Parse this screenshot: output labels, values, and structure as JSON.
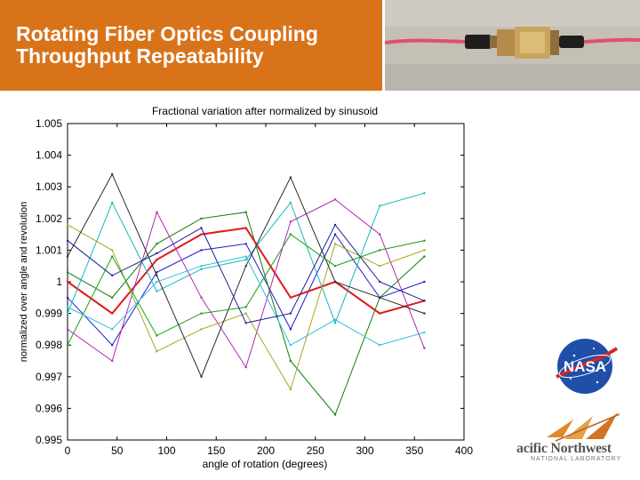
{
  "slide": {
    "title": "Rotating Fiber Optics Coupling\nThroughput Repeatability",
    "header_color": "#d9731a"
  },
  "photo": {
    "description_icon": "fiber-optic-rotary-joint-photo"
  },
  "logos": {
    "nasa": {
      "text": "NASA"
    },
    "pnnl": {
      "name": "acific Northwest",
      "sub": "NATIONAL LABORATORY"
    }
  },
  "chart_data": {
    "type": "line",
    "title": "Fractional variation after normalized by sinusoid",
    "xlabel": "angle of rotation (degrees)",
    "ylabel": "normalized over angle and revolution",
    "xlim": [
      0,
      400
    ],
    "ylim": [
      0.995,
      1.005
    ],
    "xticks": [
      "0",
      "50",
      "100",
      "150",
      "200",
      "250",
      "300",
      "350",
      "400"
    ],
    "yticks": [
      "0.995",
      "0.996",
      "0.997",
      "0.998",
      "0.999",
      "1",
      "1.001",
      "1.002",
      "1.003",
      "1.004",
      "1.005"
    ],
    "grid": false,
    "x": [
      0,
      45,
      90,
      135,
      180,
      225,
      270,
      315,
      360
    ],
    "series": [
      {
        "color": "#1c1ccf",
        "values": [
          0.9995,
          0.998,
          1.0003,
          1.001,
          1.0012,
          0.9985,
          1.0015,
          0.9995,
          1.0
        ]
      },
      {
        "color": "#0f7f0f",
        "values": [
          1.0003,
          0.9995,
          1.0012,
          1.002,
          1.0022,
          0.9975,
          0.9958,
          0.9995,
          1.0008
        ]
      },
      {
        "color": "#e01b1b",
        "values": [
          1.0,
          0.999,
          1.0007,
          1.0015,
          1.0017,
          0.9995,
          1.0,
          0.999,
          0.9994
        ]
      },
      {
        "color": "#14b8b8",
        "values": [
          0.999,
          1.0025,
          0.9997,
          1.0004,
          1.0007,
          1.0025,
          0.9987,
          1.0024,
          1.0028
        ]
      },
      {
        "color": "#b228b2",
        "values": [
          0.9985,
          0.9975,
          1.0022,
          0.9995,
          0.9973,
          1.0019,
          1.0026,
          1.0015,
          0.9979
        ]
      },
      {
        "color": "#a8a820",
        "values": [
          1.0018,
          1.001,
          0.9978,
          0.9985,
          0.999,
          0.9966,
          1.0012,
          1.0005,
          1.001
        ]
      },
      {
        "color": "#2a2a2a",
        "values": [
          1.0008,
          1.0034,
          1.0002,
          0.997,
          1.0005,
          1.0033,
          1.0,
          0.9995,
          0.999
        ]
      },
      {
        "color": "#1a9e1a",
        "values": [
          0.998,
          1.0008,
          0.9983,
          0.999,
          0.9992,
          1.0015,
          1.0005,
          1.001,
          1.0013
        ]
      },
      {
        "color": "#2fbfe0",
        "values": [
          0.9992,
          0.9985,
          1.0,
          1.0005,
          1.0008,
          0.998,
          0.9988,
          0.998,
          0.9984
        ]
      },
      {
        "color": "#1c1c9a",
        "values": [
          1.0013,
          1.0002,
          1.0009,
          1.0017,
          0.9987,
          0.999,
          1.0018,
          1.0,
          0.9994
        ]
      }
    ]
  }
}
